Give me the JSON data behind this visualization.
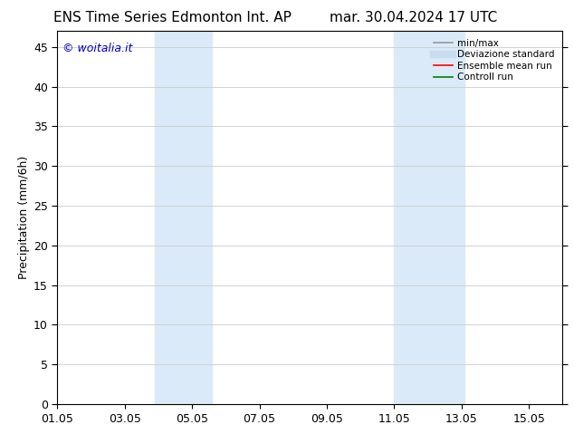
{
  "title_left": "ENS Time Series Edmonton Int. AP",
  "title_right": "mar. 30.04.2024 17 UTC",
  "ylabel": "Precipitation (mm/6h)",
  "watermark": "© woitalia.it",
  "watermark_color": "#0000cc",
  "ylim": [
    0,
    47
  ],
  "yticks": [
    0,
    5,
    10,
    15,
    20,
    25,
    30,
    35,
    40,
    45
  ],
  "xtick_positions": [
    1,
    3,
    5,
    7,
    9,
    11,
    13,
    15
  ],
  "xtick_labels": [
    "01.05",
    "03.05",
    "05.05",
    "07.05",
    "09.05",
    "11.05",
    "13.05",
    "15.05"
  ],
  "xlim": [
    1,
    16
  ],
  "shaded_bands": [
    {
      "x_start": 3.9,
      "x_end": 5.6,
      "color": "#daeaf8"
    },
    {
      "x_start": 11.0,
      "x_end": 13.1,
      "color": "#daeaf8"
    }
  ],
  "legend_items": [
    {
      "label": "min/max",
      "color": "#999999",
      "lw": 1.2
    },
    {
      "label": "Deviazione standard",
      "color": "#c8ddf0",
      "lw": 6
    },
    {
      "label": "Ensemble mean run",
      "color": "#ff0000",
      "lw": 1.2
    },
    {
      "label": "Controll run",
      "color": "#008000",
      "lw": 1.2
    }
  ],
  "background_color": "#ffffff",
  "title_fontsize": 11,
  "tick_fontsize": 9,
  "ylabel_fontsize": 9,
  "watermark_fontsize": 9
}
